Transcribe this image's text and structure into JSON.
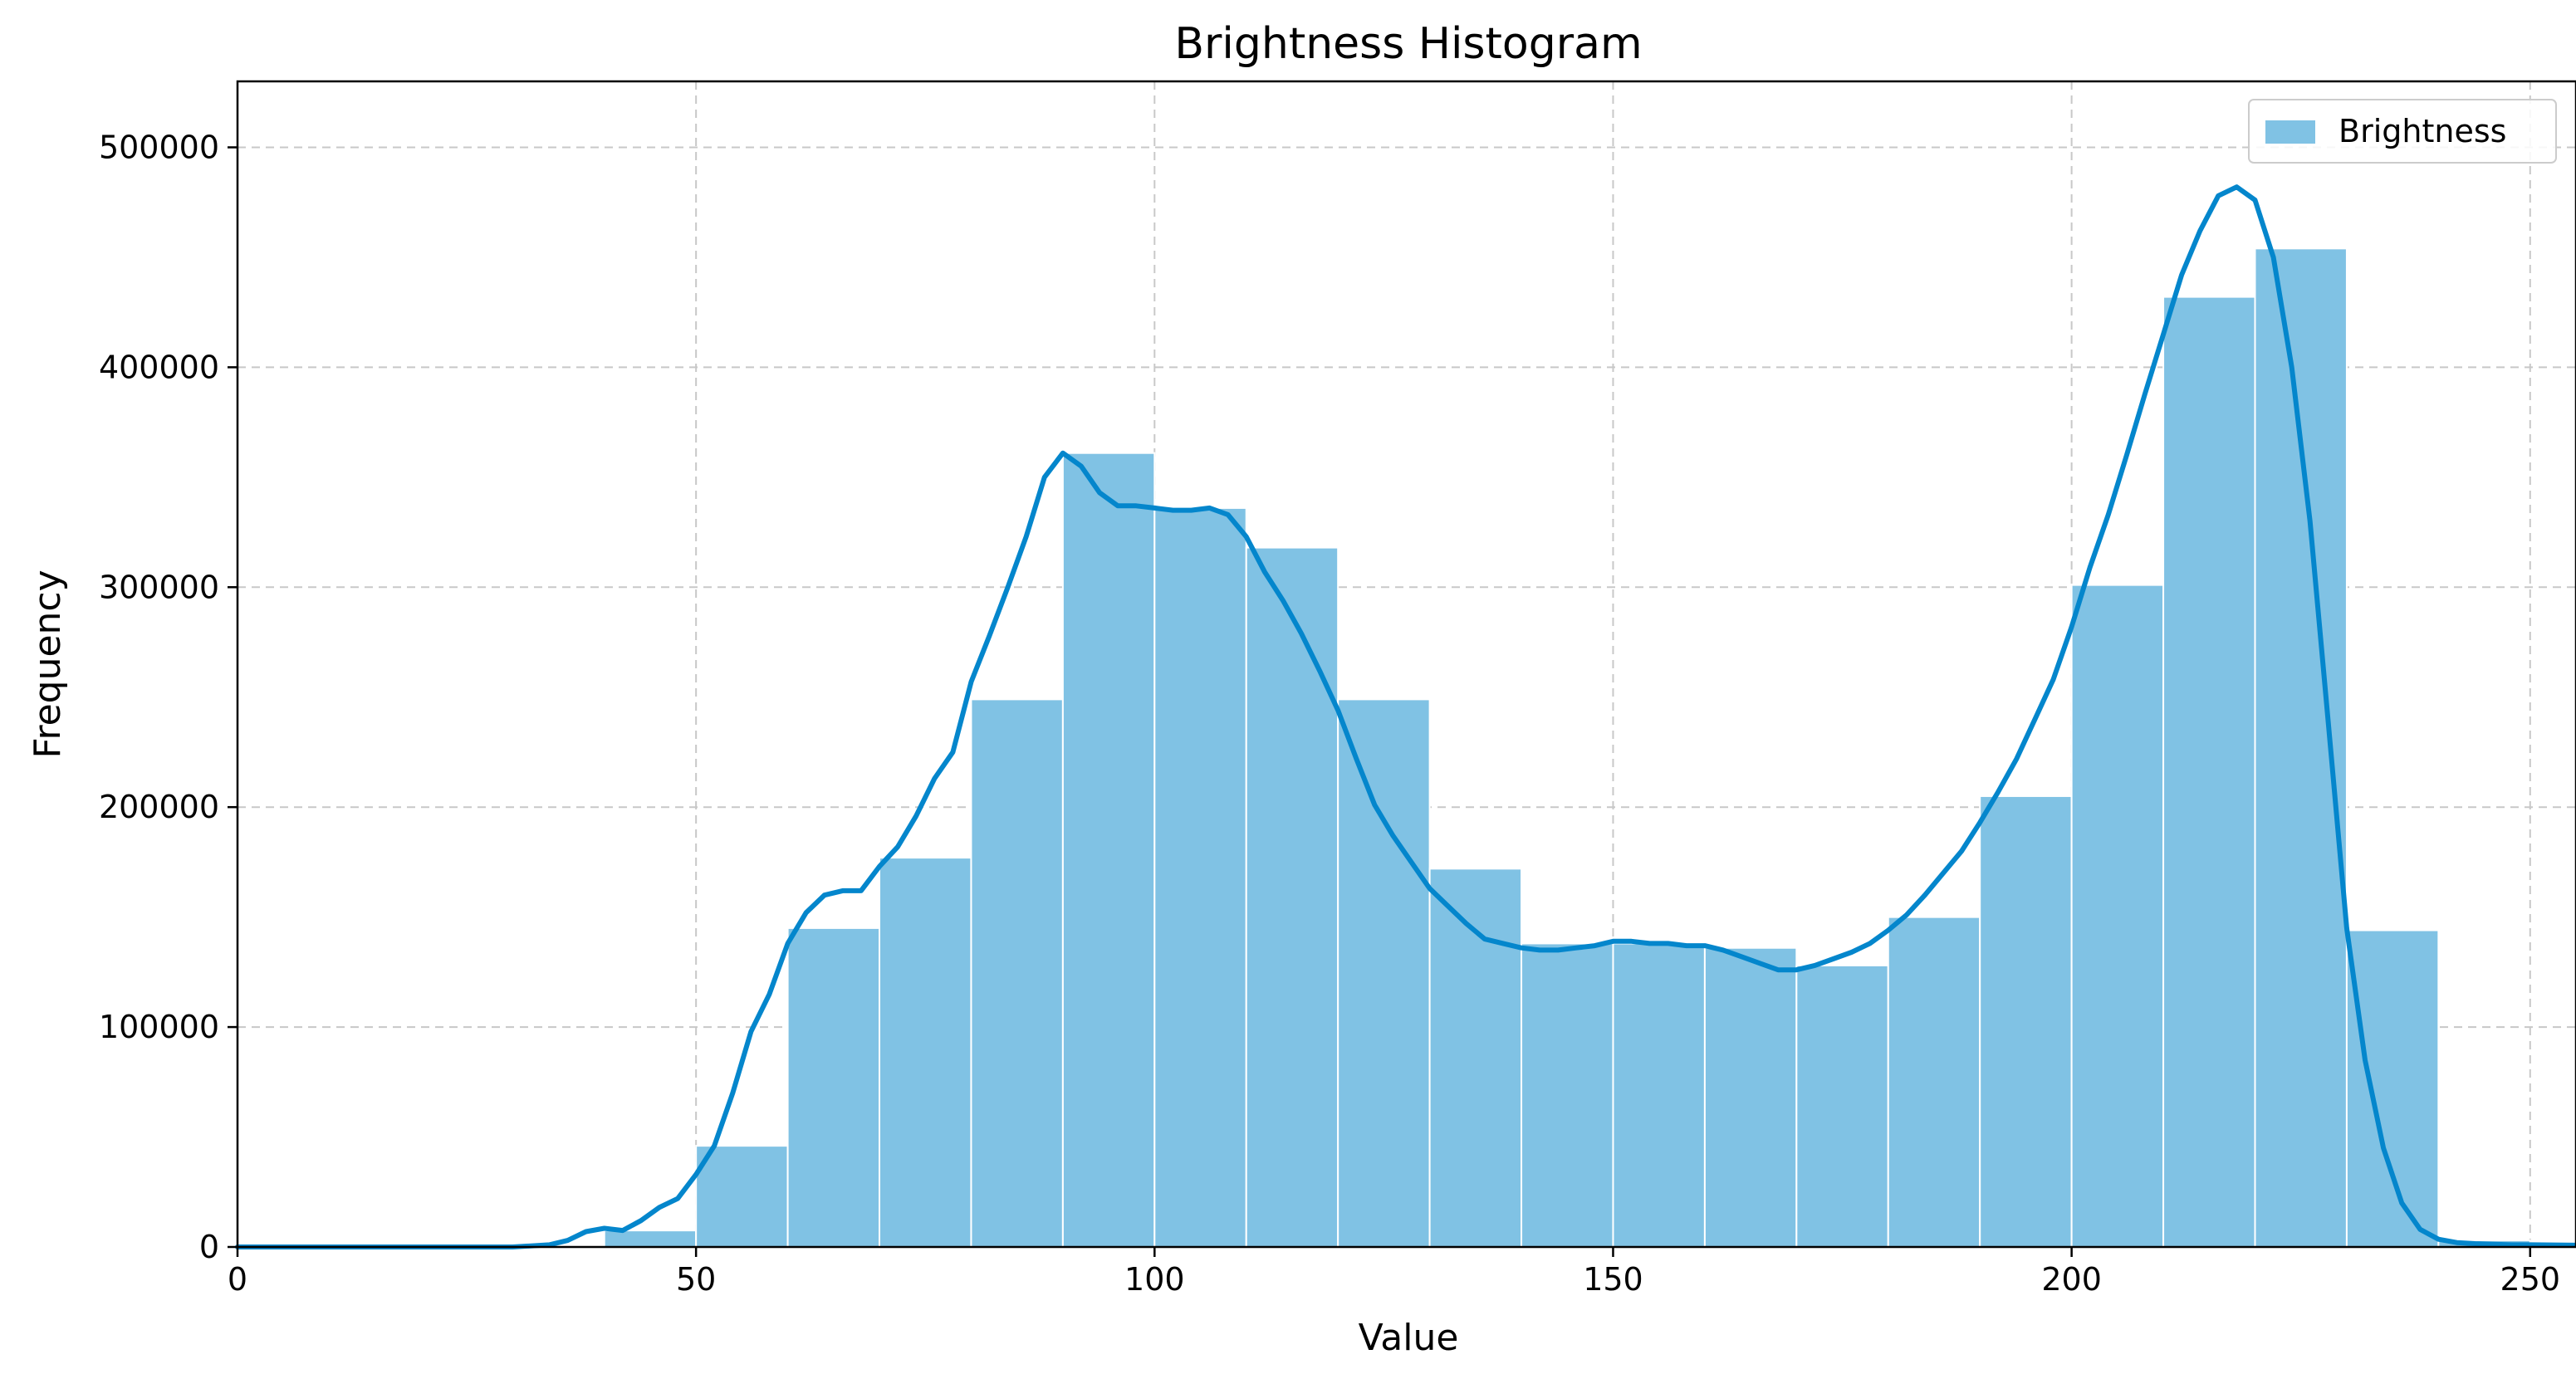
{
  "chart_data": {
    "type": "bar",
    "title": "Brightness Histogram",
    "xlabel": "Value",
    "ylabel": "Frequency",
    "xlim": [
      0,
      255
    ],
    "ylim": [
      0,
      530000
    ],
    "grid": true,
    "legend_position": "top-right",
    "xticks": [
      0,
      50,
      100,
      150,
      200,
      250
    ],
    "xtick_labels": [
      "0",
      "50",
      "100",
      "150",
      "200",
      "250"
    ],
    "yticks": [
      0,
      100000,
      200000,
      300000,
      400000,
      500000
    ],
    "ytick_labels": [
      "0",
      "100000",
      "200000",
      "300000",
      "400000",
      "500000"
    ],
    "colors": {
      "bar_fill": "#80c2e4",
      "bar_edge": "#ffffff",
      "curve": "#0486cc",
      "grid": "#c8c8c8"
    },
    "series": [
      {
        "name": "Brightness",
        "bin_edges": [
          0,
          10,
          20,
          30,
          40,
          50,
          60,
          70,
          80,
          90,
          100,
          110,
          120,
          130,
          140,
          150,
          160,
          170,
          180,
          190,
          200,
          210,
          220,
          230,
          240,
          250,
          255
        ],
        "values": [
          0,
          0,
          0,
          500,
          7500,
          46000,
          145000,
          177000,
          249000,
          361000,
          336000,
          318000,
          249000,
          172000,
          138000,
          138000,
          136000,
          128000,
          150000,
          205000,
          301000,
          432000,
          454000,
          144000,
          3000,
          1000
        ]
      }
    ],
    "curve": {
      "x": [
        0,
        10,
        20,
        30,
        34,
        36,
        38,
        40,
        42,
        44,
        46,
        48,
        50,
        52,
        54,
        56,
        58,
        60,
        62,
        64,
        66,
        68,
        70,
        72,
        74,
        76,
        78,
        80,
        82,
        84,
        86,
        88,
        90,
        92,
        94,
        96,
        98,
        100,
        102,
        104,
        106,
        108,
        110,
        112,
        114,
        116,
        118,
        120,
        122,
        124,
        126,
        128,
        130,
        132,
        134,
        136,
        138,
        140,
        142,
        144,
        146,
        148,
        150,
        152,
        154,
        156,
        158,
        160,
        162,
        164,
        166,
        168,
        170,
        172,
        174,
        176,
        178,
        180,
        182,
        184,
        186,
        188,
        190,
        192,
        194,
        196,
        198,
        200,
        202,
        204,
        206,
        208,
        210,
        212,
        214,
        216,
        218,
        220,
        222,
        224,
        226,
        228,
        230,
        232,
        234,
        236,
        238,
        240,
        242,
        244,
        246,
        248,
        250,
        255
      ],
      "y": [
        0,
        0,
        0,
        0,
        1000,
        3000,
        7000,
        8500,
        7500,
        12000,
        18000,
        22000,
        33000,
        46000,
        70000,
        98000,
        115000,
        138000,
        152000,
        160000,
        162000,
        162000,
        173000,
        182000,
        196000,
        213000,
        225000,
        257000,
        278000,
        300000,
        323000,
        350000,
        361000,
        355000,
        343000,
        337000,
        337000,
        336000,
        335000,
        335000,
        336000,
        333000,
        323000,
        307000,
        294000,
        279000,
        262000,
        244000,
        222000,
        201000,
        187000,
        175000,
        163000,
        155000,
        147000,
        140000,
        138000,
        136000,
        135000,
        135000,
        136000,
        137000,
        139000,
        139000,
        138000,
        138000,
        137000,
        137000,
        135000,
        132000,
        129000,
        126000,
        126000,
        128000,
        131000,
        134000,
        138000,
        144000,
        151000,
        160000,
        170000,
        180000,
        193000,
        207000,
        222000,
        240000,
        258000,
        282000,
        309000,
        333000,
        360000,
        388000,
        415000,
        442000,
        462000,
        478000,
        482000,
        476000,
        450000,
        400000,
        330000,
        238000,
        145000,
        85000,
        45000,
        20000,
        8000,
        3500,
        2000,
        1500,
        1200,
        1000,
        1000,
        800
      ]
    }
  }
}
